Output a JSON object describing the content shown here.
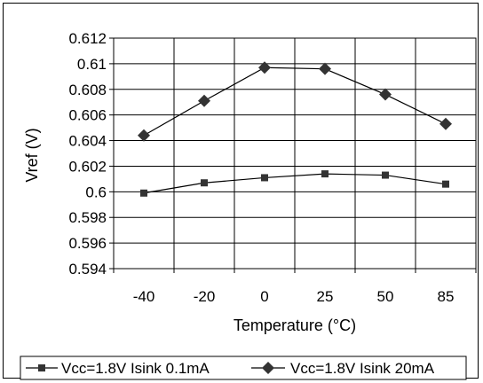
{
  "chart_data": {
    "type": "line",
    "categories": [
      "-40",
      "-20",
      "0",
      "25",
      "50",
      "85"
    ],
    "series": [
      {
        "name": "Vcc=1.8V Isink 0.1mA",
        "marker": "square",
        "values": [
          0.5999,
          0.6007,
          0.6011,
          0.6014,
          0.6013,
          0.6006
        ]
      },
      {
        "name": "Vcc=1.8V Isink 20mA",
        "marker": "diamond",
        "values": [
          0.6044,
          0.6071,
          0.6097,
          0.6096,
          0.6076,
          0.6053
        ]
      }
    ],
    "xlabel": "Temperature (°C)",
    "ylabel": "Vref (V)",
    "ylim": [
      0.594,
      0.612
    ],
    "yticks": [
      "0.612",
      "0.61",
      "0.608",
      "0.606",
      "0.604",
      "0.602",
      "0.6",
      "0.598",
      "0.596",
      "0.594"
    ],
    "grid": true,
    "legend_position": "bottom",
    "colors": {
      "line": "#000000",
      "marker": "#333333",
      "grid": "#000000"
    }
  }
}
